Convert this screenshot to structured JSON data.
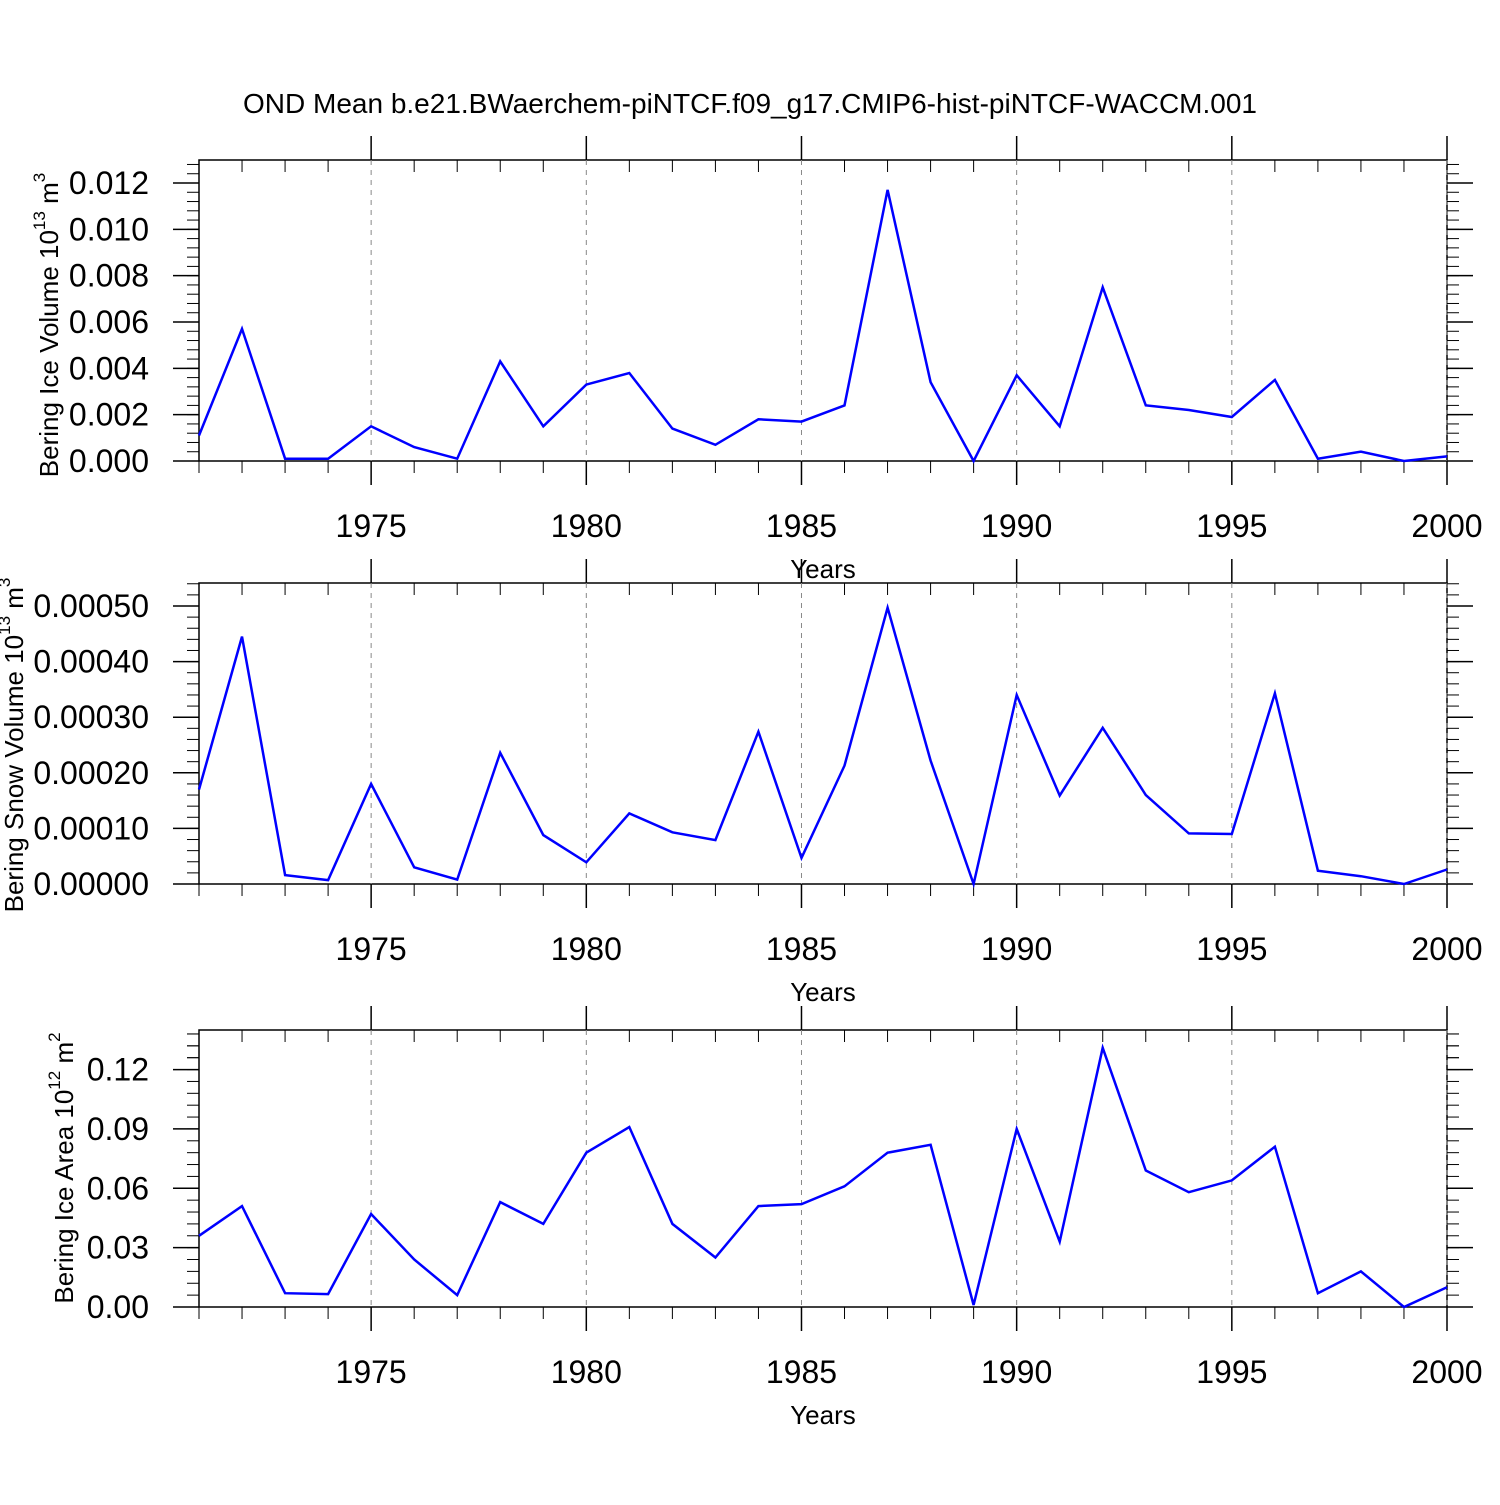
{
  "title": "OND Mean b.e21.BWaerchem-piNTCF.f09_g17.CMIP6-hist-piNTCF-WACCM.001",
  "colors": {
    "series": "#0000ff",
    "axes": "#000000",
    "grid": "#888888"
  },
  "chart_data": [
    {
      "type": "line",
      "xlabel": "Years",
      "ylabel_text": "Bering Ice Volume 10",
      "ylabel_sup": "13",
      "ylabel_unit": " m",
      "ylabel_unit_sup": "3",
      "xlim": [
        1971,
        2000
      ],
      "ylim": [
        0,
        0.012
      ],
      "grid_x": "dashed at major ticks",
      "x_ticks": [
        1975,
        1980,
        1985,
        1990,
        1995,
        2000
      ],
      "x_tick_labels": [
        "1975",
        "1980",
        "1985",
        "1990",
        "1995",
        "2000"
      ],
      "y_ticks": [
        0,
        0.002,
        0.004,
        0.006,
        0.008,
        0.01,
        0.012
      ],
      "y_tick_labels": [
        "0.000",
        "0.002",
        "0.004",
        "0.006",
        "0.008",
        "0.010",
        "0.012"
      ],
      "x": [
        1971,
        1972,
        1973,
        1974,
        1975,
        1976,
        1977,
        1978,
        1979,
        1980,
        1981,
        1982,
        1983,
        1984,
        1985,
        1986,
        1987,
        1988,
        1989,
        1990,
        1991,
        1992,
        1993,
        1994,
        1995,
        1996,
        1997,
        1998,
        1999,
        2000
      ],
      "y": [
        0.0011,
        0.0057,
        0.0001,
        0.0001,
        0.0015,
        0.0006,
        0.0001,
        0.0043,
        0.0015,
        0.0033,
        0.0038,
        0.0014,
        0.0007,
        0.0018,
        0.0017,
        0.0024,
        0.0117,
        0.0034,
        0.0,
        0.0037,
        0.0015,
        0.0075,
        0.0024,
        0.0022,
        0.0019,
        0.0035,
        0.0001,
        0.0004,
        0.0,
        0.0002
      ]
    },
    {
      "type": "line",
      "xlabel": "Years",
      "ylabel_text": "Bering Snow Volume 10",
      "ylabel_sup": "13",
      "ylabel_unit": " m",
      "ylabel_unit_sup": "3",
      "xlim": [
        1971,
        2000
      ],
      "ylim": [
        0,
        0.0005
      ],
      "grid_x": "dashed at major ticks",
      "x_ticks": [
        1975,
        1980,
        1985,
        1990,
        1995,
        2000
      ],
      "x_tick_labels": [
        "1975",
        "1980",
        "1985",
        "1990",
        "1995",
        "2000"
      ],
      "y_ticks": [
        0,
        0.0001,
        0.0002,
        0.0003,
        0.0004,
        0.0005
      ],
      "y_tick_labels": [
        "0.00000",
        "0.00010",
        "0.00020",
        "0.00030",
        "0.00040",
        "0.00050"
      ],
      "x": [
        1971,
        1972,
        1973,
        1974,
        1975,
        1976,
        1977,
        1978,
        1979,
        1980,
        1981,
        1982,
        1983,
        1984,
        1985,
        1986,
        1987,
        1988,
        1989,
        1990,
        1991,
        1992,
        1993,
        1994,
        1995,
        1996,
        1997,
        1998,
        1999,
        2000
      ],
      "y": [
        0.00017,
        0.000445,
        1.6e-05,
        7e-06,
        0.00018,
        3e-05,
        8e-06,
        0.000236,
        8.8e-05,
        3.9e-05,
        0.000127,
        9.3e-05,
        7.9e-05,
        0.000274,
        4.7e-05,
        0.000213,
        0.000497,
        0.000222,
        0.0,
        0.00034,
        0.000159,
        0.000281,
        0.00016,
        9.1e-05,
        9e-05,
        0.000343,
        2.4e-05,
        1.4e-05,
        0.0,
        2.6e-05
      ]
    },
    {
      "type": "line",
      "xlabel": "Years",
      "ylabel_text": "Bering Ice Area 10",
      "ylabel_sup": "12",
      "ylabel_unit": " m",
      "ylabel_unit_sup": "2",
      "xlim": [
        1971,
        2000
      ],
      "ylim": [
        0,
        0.14
      ],
      "grid_x": "dashed at major ticks",
      "x_ticks": [
        1975,
        1980,
        1985,
        1990,
        1995,
        2000
      ],
      "x_tick_labels": [
        "1975",
        "1980",
        "1985",
        "1990",
        "1995",
        "2000"
      ],
      "y_ticks": [
        0,
        0.03,
        0.06,
        0.09,
        0.12
      ],
      "y_tick_labels": [
        "0.00",
        "0.03",
        "0.06",
        "0.09",
        "0.12"
      ],
      "x": [
        1971,
        1972,
        1973,
        1974,
        1975,
        1976,
        1977,
        1978,
        1979,
        1980,
        1981,
        1982,
        1983,
        1984,
        1985,
        1986,
        1987,
        1988,
        1989,
        1990,
        1991,
        1992,
        1993,
        1994,
        1995,
        1996,
        1997,
        1998,
        1999,
        2000
      ],
      "y": [
        0.036,
        0.051,
        0.007,
        0.0065,
        0.047,
        0.024,
        0.006,
        0.053,
        0.042,
        0.078,
        0.091,
        0.042,
        0.025,
        0.051,
        0.052,
        0.061,
        0.078,
        0.082,
        0.001,
        0.09,
        0.033,
        0.131,
        0.069,
        0.058,
        0.064,
        0.081,
        0.007,
        0.018,
        0.0,
        0.01
      ]
    }
  ]
}
